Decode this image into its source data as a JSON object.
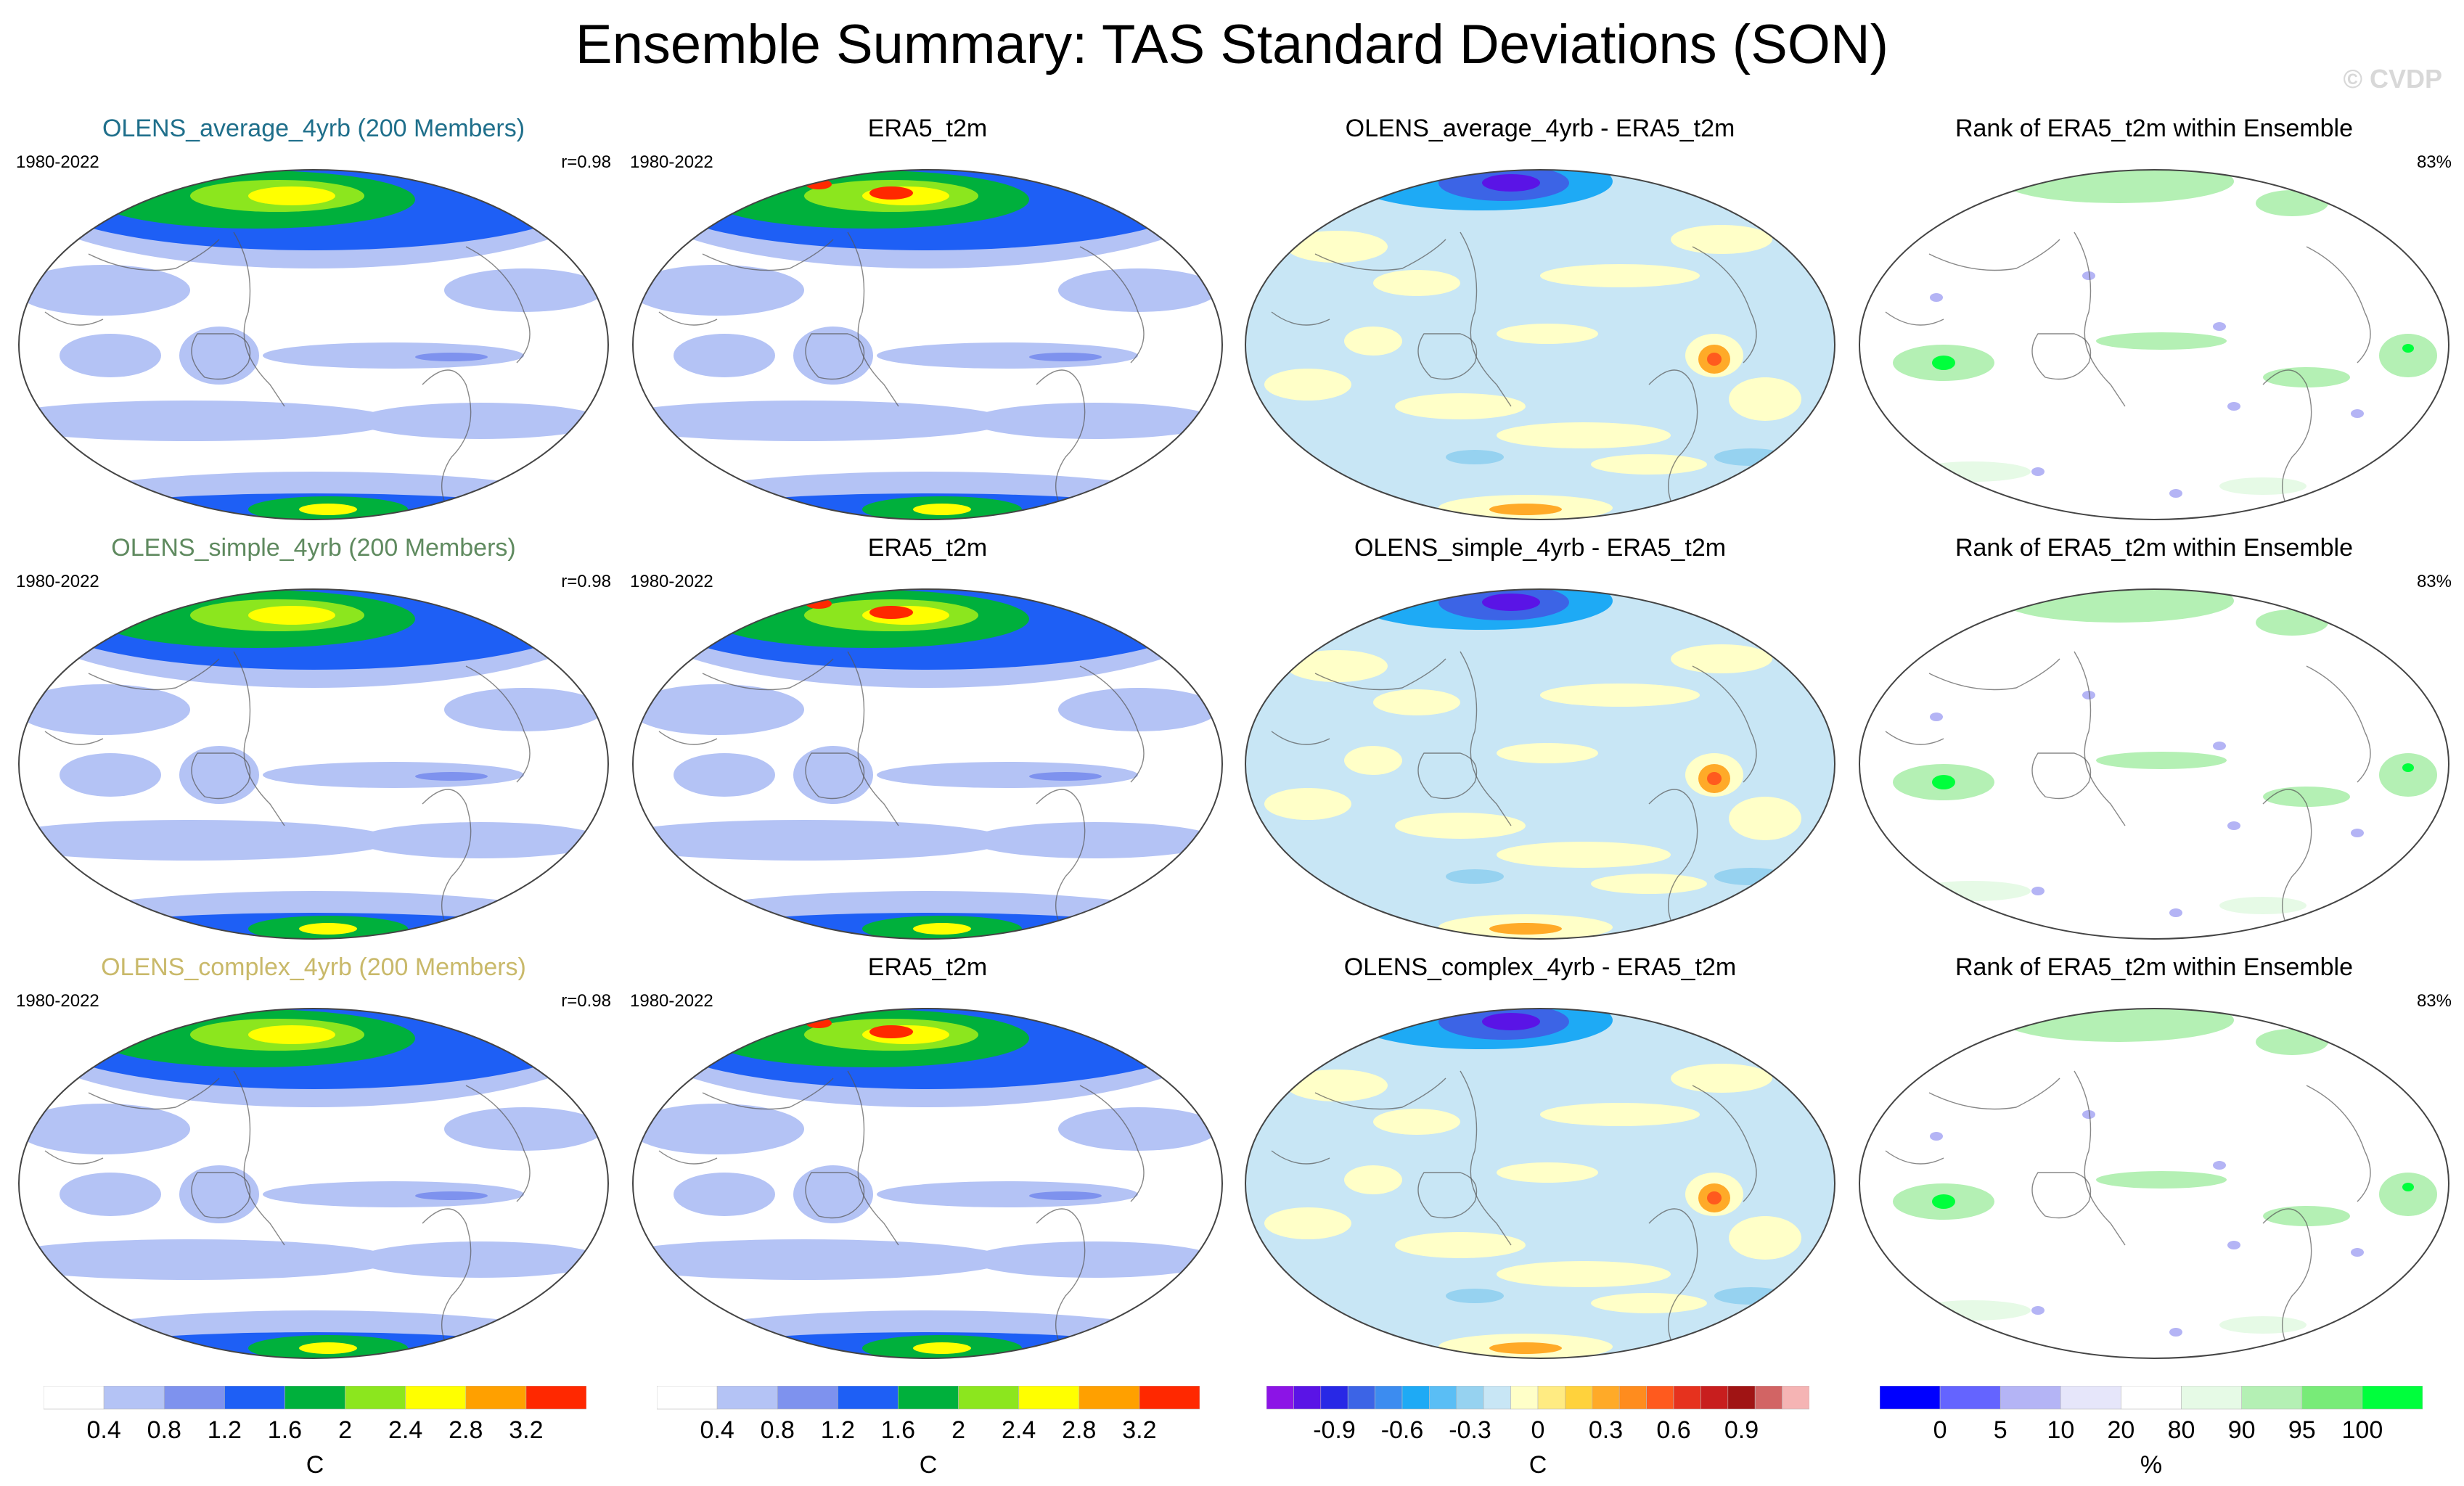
{
  "title": "Ensemble Summary: TAS Standard Deviations (SON)",
  "watermark": "© CVDP",
  "rows": [
    {
      "model_title": "OLENS_average_4yrb (200 Members)",
      "model_title_color": "#1f6f8b",
      "model_years": "1980-2022",
      "model_r": "r=0.98",
      "obs_title": "ERA5_t2m",
      "obs_years": "1980-2022",
      "diff_title": "OLENS_average_4yrb - ERA5_t2m",
      "rank_title": "Rank of ERA5_t2m within Ensemble",
      "rank_pct": "83%"
    },
    {
      "model_title": "OLENS_simple_4yrb (200 Members)",
      "model_title_color": "#5f8a5f",
      "model_years": "1980-2022",
      "model_r": "r=0.98",
      "obs_title": "ERA5_t2m",
      "obs_years": "1980-2022",
      "diff_title": "OLENS_simple_4yrb - ERA5_t2m",
      "rank_title": "Rank of ERA5_t2m within Ensemble",
      "rank_pct": "83%"
    },
    {
      "model_title": "OLENS_complex_4yrb (200 Members)",
      "model_title_color": "#c9b96a",
      "model_years": "1980-2022",
      "model_r": "r=0.98",
      "obs_title": "ERA5_t2m",
      "obs_years": "1980-2022",
      "diff_title": "OLENS_complex_4yrb - ERA5_t2m",
      "rank_title": "Rank of ERA5_t2m within Ensemble",
      "rank_pct": "83%"
    }
  ],
  "legends": {
    "std": {
      "colors": [
        "#ffffff",
        "#b4c3f5",
        "#7e92ee",
        "#1e5ff5",
        "#00b03c",
        "#8ce61e",
        "#ffff00",
        "#ffa000",
        "#ff2800"
      ],
      "ticks": [
        "0.4",
        "0.8",
        "1.2",
        "1.6",
        "2",
        "2.4",
        "2.8",
        "3.2"
      ],
      "unit": "C"
    },
    "diff": {
      "colors": [
        "#8c14e6",
        "#5a14e6",
        "#2828e6",
        "#3c64e6",
        "#3c8cf0",
        "#1eaaf5",
        "#5abef5",
        "#96d2f0",
        "#c8e6f5",
        "#ffffc8",
        "#ffeb82",
        "#ffd23c",
        "#ffaa28",
        "#ff8c1e",
        "#ff5a1e",
        "#e6321e",
        "#c81e1e",
        "#a01414",
        "#d26464",
        "#f5b4b4"
      ],
      "ticks": [
        "-0.9",
        "-0.6",
        "-0.3",
        "0",
        "0.3",
        "0.6",
        "0.9"
      ],
      "unit": "C"
    },
    "rank": {
      "colors": [
        "#0000ff",
        "#6464ff",
        "#b4b4f5",
        "#e6e6fa",
        "#ffffff",
        "#e6fae6",
        "#b4f0b4",
        "#78eb78",
        "#00ff3c"
      ],
      "ticks": [
        "0",
        "5",
        "10",
        "20",
        "80",
        "90",
        "95",
        "100"
      ],
      "unit": "%"
    }
  }
}
